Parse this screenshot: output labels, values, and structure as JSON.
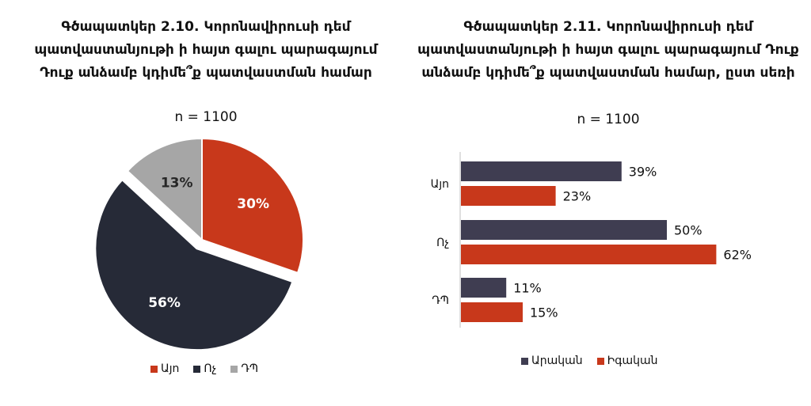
{
  "chart_data": [
    {
      "type": "pie",
      "title": "Գծապատկեր 2.10. Կորոնավիրուսի դեմ պատվաստանյութի ի հայտ գալու պարագայում Դուք անձամբ կդիմե՞ք պատվաստման համար",
      "subtitle": "n = 1100",
      "slices": [
        {
          "label": "Այո",
          "value": 30,
          "display": "30%",
          "color": "#c8381b",
          "exploded": false,
          "label_color": "#ffffff"
        },
        {
          "label": "Ոչ",
          "value": 56,
          "display": "56%",
          "color": "#262a37",
          "exploded": true,
          "label_color": "#ffffff"
        },
        {
          "label": "ԴՊ",
          "value": 13,
          "display": "13%",
          "color": "#a6a6a6",
          "exploded": false,
          "label_color": "#262626"
        }
      ],
      "legend": [
        "Այո",
        "Ոչ",
        "ԴՊ"
      ],
      "legend_position": "bottom"
    },
    {
      "type": "bar",
      "orientation": "horizontal",
      "title": "Գծապատկեր 2.11. Կորոնավիրուսի դեմ պատվաստանյութի ի հայտ գալու պարագայում Դուք անձամբ կդիմե՞ք պատվաստման համար, ըստ սեռի",
      "subtitle": "n = 1100",
      "categories": [
        "Այո",
        "Ոչ",
        "ԴՊ"
      ],
      "series": [
        {
          "name": "Արական",
          "values": [
            39,
            50,
            11
          ],
          "labels": [
            "39%",
            "50%",
            "11%"
          ],
          "color": "#3f3d51"
        },
        {
          "name": "Իգական",
          "values": [
            23,
            62,
            15
          ],
          "labels": [
            "23%",
            "62%",
            "15%"
          ],
          "color": "#c8381b"
        }
      ],
      "xlim": [
        0,
        100
      ],
      "legend_position": "bottom"
    }
  ]
}
